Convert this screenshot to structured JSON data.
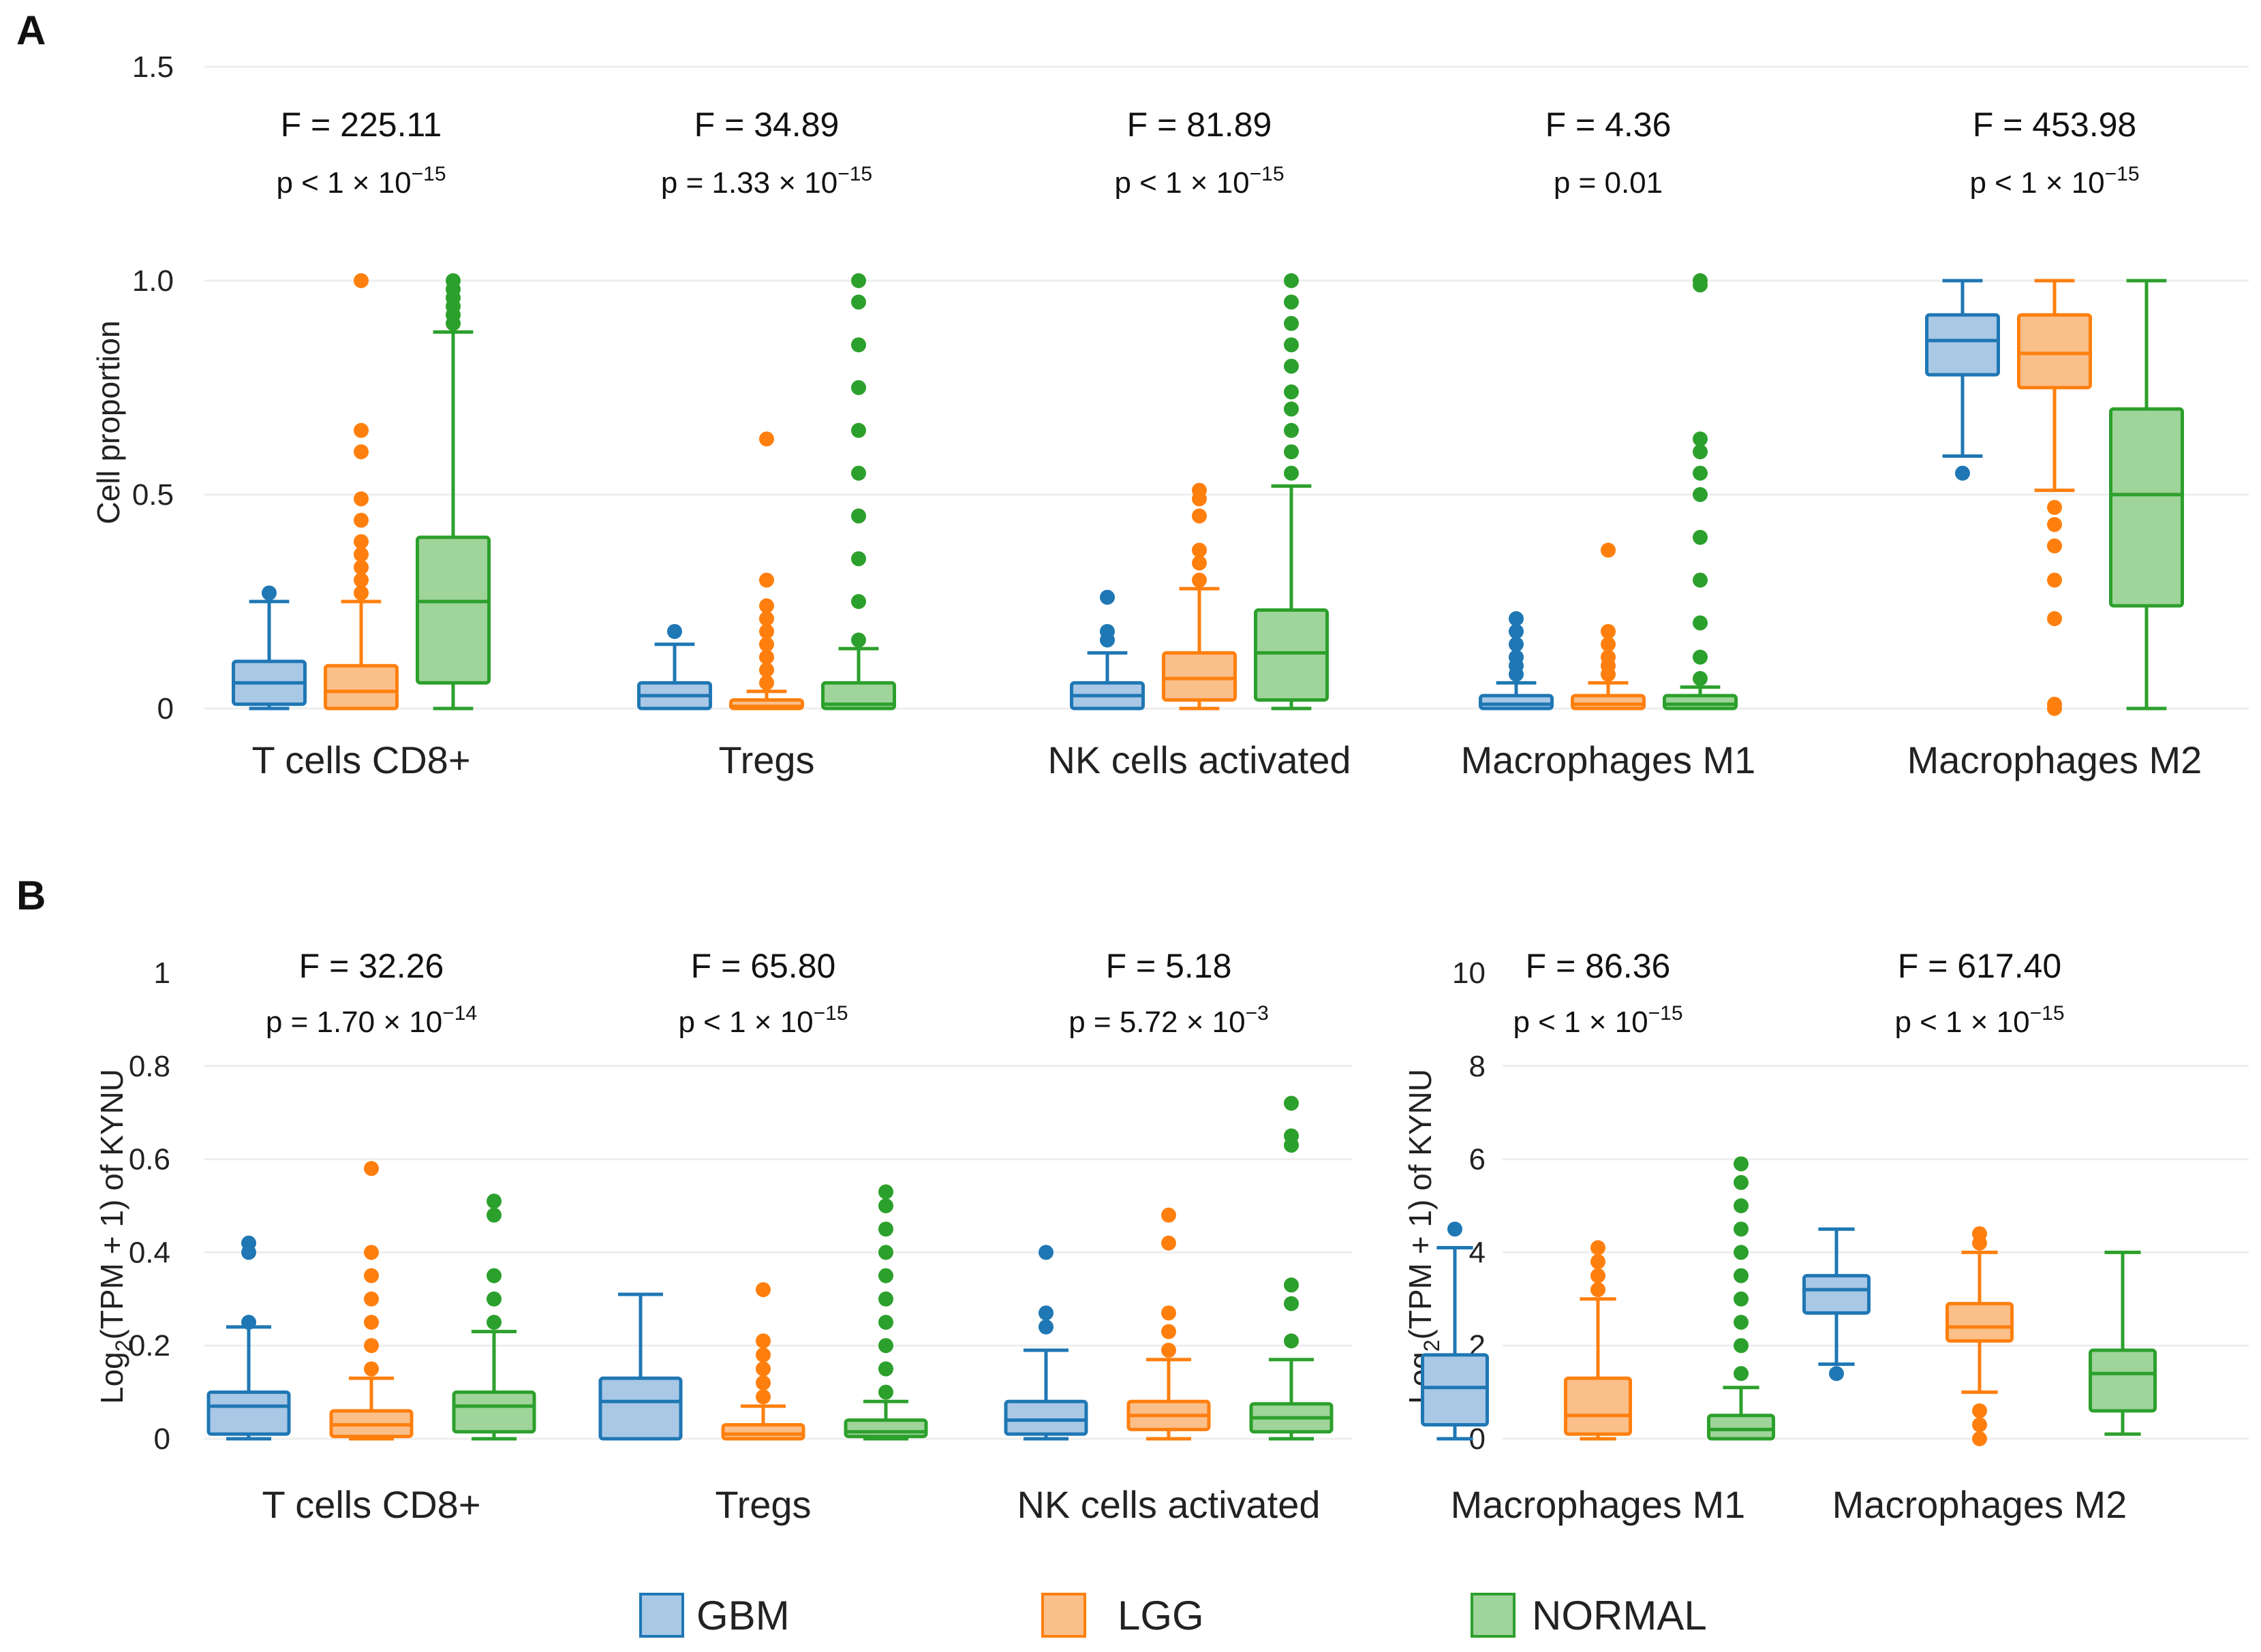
{
  "colors": {
    "GBM": "#1f77b4",
    "GBM_fill": "#a8c8e6",
    "LGG": "#ff7f0e",
    "LGG_fill": "#fbbf8a",
    "NORMAL": "#2ca02c",
    "NORMAL_fill": "#9fd49a"
  },
  "panel_labels": [
    "A",
    "B"
  ],
  "legend": [
    {
      "key": "GBM",
      "label": "GBM"
    },
    {
      "key": "LGG",
      "label": "LGG"
    },
    {
      "key": "NORMAL",
      "label": "NORMAL"
    }
  ],
  "chart_data": [
    {
      "id": "A",
      "type": "box",
      "ylabel": "Cell proportion",
      "ylim": [
        0,
        1.5
      ],
      "yticks": [
        0,
        0.5,
        1.0,
        1.5
      ],
      "ytick_labels": [
        "0",
        "0.5",
        "1.0",
        "1.5"
      ],
      "groups": [
        "GBM",
        "LGG",
        "NORMAL"
      ],
      "categories": [
        {
          "label": "T cells CD8+",
          "F": "F = 225.11",
          "p_pre": "p < 1 × 10",
          "p_exp": "−15",
          "boxes": [
            {
              "group": "GBM",
              "min": 0.0,
              "q1": 0.01,
              "median": 0.06,
              "q3": 0.11,
              "max": 0.25,
              "outliers": [
                0.27
              ]
            },
            {
              "group": "LGG",
              "min": 0.0,
              "q1": 0.0,
              "median": 0.04,
              "q3": 0.1,
              "max": 0.25,
              "outliers": [
                0.27,
                0.3,
                0.33,
                0.36,
                0.39,
                0.44,
                0.49,
                0.6,
                0.65,
                1.0
              ]
            },
            {
              "group": "NORMAL",
              "min": 0.0,
              "q1": 0.06,
              "median": 0.25,
              "q3": 0.4,
              "max": 0.88,
              "outliers": [
                0.9,
                0.92,
                0.94,
                0.96,
                0.98,
                1.0
              ]
            }
          ]
        },
        {
          "label": "Tregs",
          "F": "F = 34.89",
          "p_pre": "p = 1.33 × 10",
          "p_exp": "−15",
          "boxes": [
            {
              "group": "GBM",
              "min": 0.0,
              "q1": 0.0,
              "median": 0.03,
              "q3": 0.06,
              "max": 0.15,
              "outliers": [
                0.18
              ]
            },
            {
              "group": "LGG",
              "min": 0.0,
              "q1": 0.0,
              "median": 0.005,
              "q3": 0.02,
              "max": 0.04,
              "outliers": [
                0.06,
                0.09,
                0.12,
                0.15,
                0.18,
                0.21,
                0.24,
                0.3,
                0.63
              ]
            },
            {
              "group": "NORMAL",
              "min": 0.0,
              "q1": 0.0,
              "median": 0.01,
              "q3": 0.06,
              "max": 0.14,
              "outliers": [
                0.16,
                0.25,
                0.35,
                0.45,
                0.55,
                0.65,
                0.75,
                0.85,
                0.95,
                1.0
              ]
            }
          ]
        },
        {
          "label": "NK cells activated",
          "F": "F = 81.89",
          "p_pre": "p < 1 × 10",
          "p_exp": "−15",
          "boxes": [
            {
              "group": "GBM",
              "min": 0.0,
              "q1": 0.0,
              "median": 0.03,
              "q3": 0.06,
              "max": 0.13,
              "outliers": [
                0.16,
                0.18,
                0.26
              ]
            },
            {
              "group": "LGG",
              "min": 0.0,
              "q1": 0.02,
              "median": 0.07,
              "q3": 0.13,
              "max": 0.28,
              "outliers": [
                0.3,
                0.34,
                0.37,
                0.45,
                0.49,
                0.51
              ]
            },
            {
              "group": "NORMAL",
              "min": 0.0,
              "q1": 0.02,
              "median": 0.13,
              "q3": 0.23,
              "max": 0.52,
              "outliers": [
                0.55,
                0.6,
                0.65,
                0.7,
                0.74,
                0.8,
                0.85,
                0.9,
                0.95,
                1.0
              ]
            }
          ]
        },
        {
          "label": "Macrophages M1",
          "F": "F = 4.36",
          "p_pre": "p = 0.01",
          "p_exp": "",
          "boxes": [
            {
              "group": "GBM",
              "min": 0.0,
              "q1": 0.0,
              "median": 0.01,
              "q3": 0.03,
              "max": 0.06,
              "outliers": [
                0.08,
                0.1,
                0.12,
                0.15,
                0.18,
                0.21
              ]
            },
            {
              "group": "LGG",
              "min": 0.0,
              "q1": 0.0,
              "median": 0.01,
              "q3": 0.03,
              "max": 0.06,
              "outliers": [
                0.08,
                0.1,
                0.12,
                0.15,
                0.18,
                0.37
              ]
            },
            {
              "group": "NORMAL",
              "min": 0.0,
              "q1": 0.0,
              "median": 0.01,
              "q3": 0.03,
              "max": 0.05,
              "outliers": [
                0.07,
                0.12,
                0.2,
                0.3,
                0.4,
                0.5,
                0.55,
                0.6,
                0.63,
                0.99,
                1.0
              ]
            }
          ]
        },
        {
          "label": "Macrophages M2",
          "F": "F = 453.98",
          "p_pre": "p < 1 × 10",
          "p_exp": "−15",
          "boxes": [
            {
              "group": "GBM",
              "min": 0.59,
              "q1": 0.78,
              "median": 0.86,
              "q3": 0.92,
              "max": 1.0,
              "outliers": [
                0.55
              ]
            },
            {
              "group": "LGG",
              "min": 0.51,
              "q1": 0.75,
              "median": 0.83,
              "q3": 0.92,
              "max": 1.0,
              "outliers": [
                0.47,
                0.43,
                0.38,
                0.3,
                0.21,
                0.01,
                0.0
              ]
            },
            {
              "group": "NORMAL",
              "min": 0.0,
              "q1": 0.24,
              "median": 0.5,
              "q3": 0.7,
              "max": 1.0,
              "outliers": []
            }
          ]
        }
      ]
    },
    {
      "id": "B-left",
      "type": "box",
      "ylabel_pre": "Log",
      "ylabel_sub": "2",
      "ylabel_post": "(TPM + 1) of KYNU",
      "ylim": [
        0,
        1
      ],
      "yticks": [
        0,
        0.2,
        0.4,
        0.6,
        0.8,
        1
      ],
      "ytick_labels": [
        "0",
        "0.2",
        "0.4",
        "0.6",
        "0.8",
        "1"
      ],
      "groups": [
        "GBM",
        "LGG",
        "NORMAL"
      ],
      "categories": [
        {
          "label": "T cells CD8+",
          "F": "F = 32.26",
          "p_pre": "p = 1.70 × 10",
          "p_exp": "−14",
          "boxes": [
            {
              "group": "GBM",
              "min": 0.0,
              "q1": 0.01,
              "median": 0.07,
              "q3": 0.1,
              "max": 0.24,
              "outliers": [
                0.25,
                0.4,
                0.42
              ]
            },
            {
              "group": "LGG",
              "min": 0.0,
              "q1": 0.005,
              "median": 0.03,
              "q3": 0.06,
              "max": 0.13,
              "outliers": [
                0.15,
                0.2,
                0.25,
                0.3,
                0.35,
                0.4,
                0.58
              ]
            },
            {
              "group": "NORMAL",
              "min": 0.0,
              "q1": 0.015,
              "median": 0.07,
              "q3": 0.1,
              "max": 0.23,
              "outliers": [
                0.25,
                0.3,
                0.35,
                0.48,
                0.51
              ]
            }
          ]
        },
        {
          "label": "Tregs",
          "F": "F = 65.80",
          "p_pre": "p < 1 × 10",
          "p_exp": "−15",
          "boxes": [
            {
              "group": "GBM",
              "min": 0.0,
              "q1": 0.0,
              "median": 0.08,
              "q3": 0.13,
              "max": 0.31,
              "outliers": []
            },
            {
              "group": "LGG",
              "min": 0.0,
              "q1": 0.0,
              "median": 0.01,
              "q3": 0.03,
              "max": 0.07,
              "outliers": [
                0.09,
                0.12,
                0.15,
                0.18,
                0.21,
                0.32
              ]
            },
            {
              "group": "NORMAL",
              "min": 0.0,
              "q1": 0.005,
              "median": 0.015,
              "q3": 0.04,
              "max": 0.08,
              "outliers": [
                0.1,
                0.15,
                0.2,
                0.25,
                0.3,
                0.35,
                0.4,
                0.45,
                0.5,
                0.53
              ]
            }
          ]
        },
        {
          "label": "NK cells activated",
          "F": "F = 5.18",
          "p_pre": "p = 5.72 × 10",
          "p_exp": "−3",
          "boxes": [
            {
              "group": "GBM",
              "min": 0.0,
              "q1": 0.01,
              "median": 0.04,
              "q3": 0.08,
              "max": 0.19,
              "outliers": [
                0.24,
                0.27,
                0.4
              ]
            },
            {
              "group": "LGG",
              "min": 0.0,
              "q1": 0.02,
              "median": 0.05,
              "q3": 0.08,
              "max": 0.17,
              "outliers": [
                0.19,
                0.23,
                0.27,
                0.42,
                0.48
              ]
            },
            {
              "group": "NORMAL",
              "min": 0.0,
              "q1": 0.015,
              "median": 0.045,
              "q3": 0.075,
              "max": 0.17,
              "outliers": [
                0.21,
                0.29,
                0.33,
                0.63,
                0.65,
                0.72
              ]
            }
          ]
        }
      ]
    },
    {
      "id": "B-right",
      "type": "box",
      "ylabel_pre": "Log",
      "ylabel_sub": "2",
      "ylabel_post": "(TPM + 1) of KYNU",
      "ylim": [
        0,
        10
      ],
      "yticks": [
        0,
        2,
        4,
        6,
        8,
        10
      ],
      "ytick_labels": [
        "0",
        "2",
        "4",
        "6",
        "8",
        "10"
      ],
      "groups": [
        "GBM",
        "LGG",
        "NORMAL"
      ],
      "categories": [
        {
          "label": "Macrophages M1",
          "F": "F = 86.36",
          "p_pre": "p < 1 × 10",
          "p_exp": "−15",
          "boxes": [
            {
              "group": "GBM",
              "min": 0.0,
              "q1": 0.3,
              "median": 1.1,
              "q3": 1.8,
              "max": 4.1,
              "outliers": [
                4.5
              ]
            },
            {
              "group": "LGG",
              "min": 0.0,
              "q1": 0.1,
              "median": 0.5,
              "q3": 1.3,
              "max": 3.0,
              "outliers": [
                3.2,
                3.5,
                3.8,
                4.1
              ]
            },
            {
              "group": "NORMAL",
              "min": 0.0,
              "q1": 0.0,
              "median": 0.2,
              "q3": 0.5,
              "max": 1.1,
              "outliers": [
                1.4,
                2.0,
                2.5,
                3.0,
                3.5,
                4.0,
                4.5,
                5.0,
                5.5,
                5.9
              ]
            }
          ]
        },
        {
          "label": "Macrophages M2",
          "F": "F = 617.40",
          "p_pre": "p < 1 × 10",
          "p_exp": "−15",
          "boxes": [
            {
              "group": "GBM",
              "min": 1.6,
              "q1": 2.7,
              "median": 3.2,
              "q3": 3.5,
              "max": 4.5,
              "outliers": [
                1.4
              ]
            },
            {
              "group": "LGG",
              "min": 1.0,
              "q1": 2.1,
              "median": 2.4,
              "q3": 2.9,
              "max": 4.0,
              "outliers": [
                4.2,
                4.4,
                0.6,
                0.3,
                0.0
              ]
            },
            {
              "group": "NORMAL",
              "min": 0.1,
              "q1": 0.6,
              "median": 1.4,
              "q3": 1.9,
              "max": 4.0,
              "outliers": []
            }
          ]
        }
      ]
    }
  ]
}
